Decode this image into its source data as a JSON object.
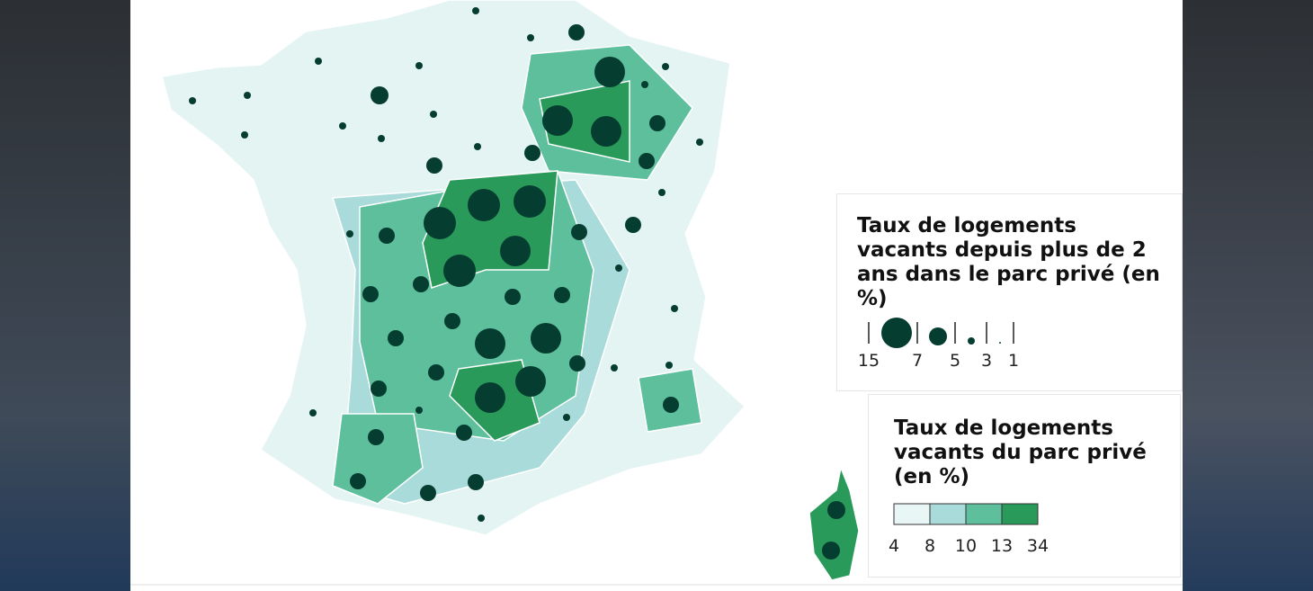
{
  "legend_circles": {
    "title": "Taux de logements vacants depuis plus de 2 ans dans le parc privé (en %)",
    "labels": [
      15,
      7,
      5,
      3,
      1
    ]
  },
  "legend_colors": {
    "title": "Taux de logements vacants du parc privé (en %)",
    "labels": [
      4,
      8,
      10,
      13,
      34
    ]
  }
}
